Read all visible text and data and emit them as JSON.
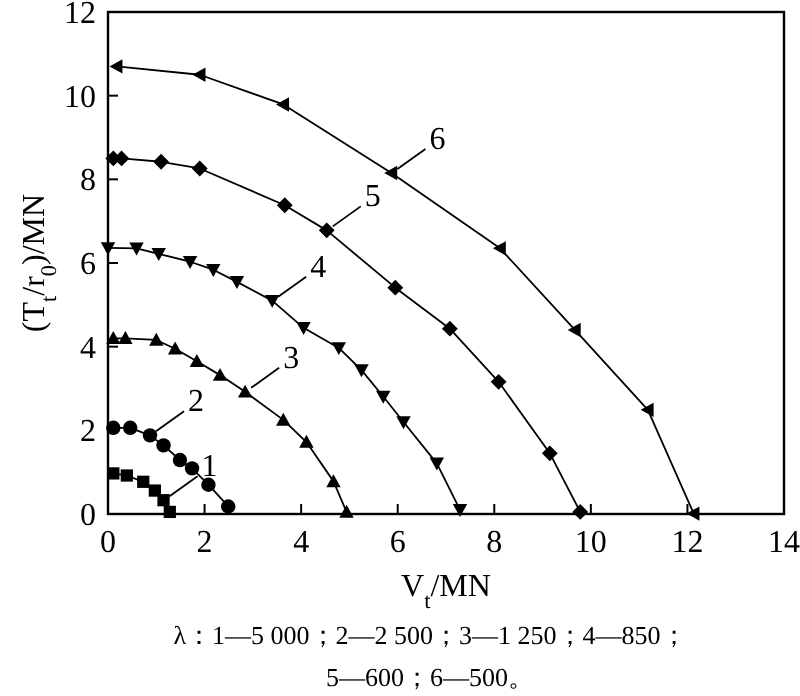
{
  "chart_data": {
    "type": "line",
    "xlabel": "V$_{t}$/MN",
    "ylabel": "(T$_{t}$/r$_{0}$)/MN",
    "xlim": [
      0,
      14
    ],
    "xticks": [
      0,
      2,
      4,
      6,
      8,
      10,
      12,
      14
    ],
    "ylim": [
      0,
      12
    ],
    "yticks": [
      0,
      2,
      4,
      6,
      8,
      10,
      12
    ],
    "grid": false,
    "series": [
      {
        "color": "#000000",
        "marker": "square",
        "x": [
          0.11,
          0.39,
          0.73,
          0.97,
          1.15,
          1.28
        ],
        "values": [
          0.97,
          0.92,
          0.77,
          0.56,
          0.33,
          0.05
        ]
      },
      {
        "color": "#000000",
        "marker": "circle",
        "x": [
          0.11,
          0.46,
          0.87,
          1.15,
          1.49,
          1.74,
          2.08,
          2.49
        ],
        "values": [
          2.06,
          2.06,
          1.88,
          1.64,
          1.29,
          1.09,
          0.7,
          0.18
        ]
      },
      {
        "color": "#000000",
        "marker": "triangle",
        "x": [
          0.11,
          0.36,
          1.0,
          1.39,
          1.84,
          2.32,
          2.84,
          3.63,
          4.11,
          4.67,
          4.94
        ],
        "values": [
          4.2,
          4.2,
          4.16,
          3.95,
          3.65,
          3.32,
          2.92,
          2.25,
          1.72,
          0.78,
          0.05
        ]
      },
      {
        "color": "#000000",
        "marker": "triangle-down",
        "x": [
          0.0,
          0.59,
          1.05,
          1.7,
          2.18,
          2.67,
          3.4,
          4.05,
          4.78,
          5.25,
          5.7,
          6.12,
          6.81,
          7.29
        ],
        "values": [
          6.36,
          6.35,
          6.22,
          6.03,
          5.84,
          5.55,
          5.1,
          4.45,
          3.97,
          3.44,
          2.81,
          2.2,
          1.21,
          0.1
        ]
      },
      {
        "color": "#000000",
        "marker": "diamond",
        "x": [
          0.11,
          0.28,
          1.1,
          1.9,
          3.66,
          4.53,
          5.95,
          7.08,
          8.09,
          9.15,
          9.78
        ],
        "values": [
          8.5,
          8.5,
          8.42,
          8.26,
          7.38,
          6.78,
          5.41,
          4.43,
          3.16,
          1.45,
          0.05
        ]
      },
      {
        "color": "#000000",
        "marker": "triangle-left",
        "x": [
          0.18,
          1.9,
          3.63,
          5.87,
          8.12,
          9.67,
          11.18,
          12.13
        ],
        "values": [
          10.7,
          10.5,
          9.79,
          8.15,
          6.35,
          4.4,
          2.49,
          0.01
        ]
      }
    ],
    "annotations": [
      {
        "text": "1",
        "x": 1.15,
        "y": 0.33
      },
      {
        "text": "2",
        "x": 0.87,
        "y": 1.88
      },
      {
        "text": "3",
        "x": 2.84,
        "y": 2.92
      },
      {
        "text": "4",
        "x": 3.4,
        "y": 5.1
      },
      {
        "text": "5",
        "x": 4.53,
        "y": 6.78
      },
      {
        "text": "6",
        "x": 5.87,
        "y": 8.15
      },
      "λ：1—5 000；2—2 500；3—1 250；4—850；",
      "5—600；6—500。"
    ]
  }
}
